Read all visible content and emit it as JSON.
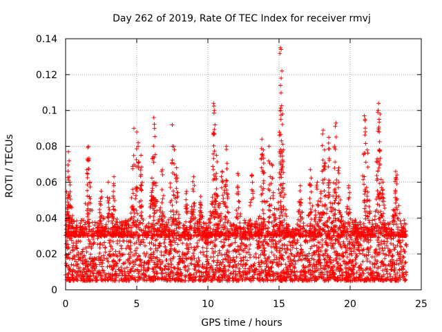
{
  "chart_data": {
    "type": "scatter",
    "title": "Day 262 of 2019, Rate Of TEC Index for receiver rmvj",
    "xlabel": "GPS time / hours",
    "ylabel": "ROTI / TECUs",
    "xlim": [
      0,
      25
    ],
    "ylim": [
      0,
      0.14
    ],
    "x_ticks": [
      0,
      5,
      10,
      15,
      20,
      25
    ],
    "x_tick_labels": [
      "0",
      "5",
      "10",
      "15",
      "20",
      "25"
    ],
    "y_ticks": [
      0,
      0.02,
      0.04,
      0.06,
      0.08,
      0.1,
      0.12,
      0.14
    ],
    "y_tick_labels": [
      "0",
      "0.02",
      "0.04",
      "0.06",
      "0.08",
      "0.1",
      "0.12",
      "0.14"
    ],
    "grid": true,
    "marker": "+",
    "series": [
      {
        "name": "ROTI",
        "color": "#ff0000",
        "x_range": [
          0,
          23.95
        ],
        "dense_band": [
          0.005,
          0.035
        ],
        "peaks": [
          {
            "x": 0.2,
            "y": 0.077
          },
          {
            "x": 0.25,
            "y": 0.072
          },
          {
            "x": 0.3,
            "y": 0.06
          },
          {
            "x": 0.2,
            "y": 0.047
          },
          {
            "x": 1.6,
            "y": 0.08
          },
          {
            "x": 1.55,
            "y": 0.073
          },
          {
            "x": 1.7,
            "y": 0.06
          },
          {
            "x": 2.5,
            "y": 0.055
          },
          {
            "x": 3.0,
            "y": 0.06
          },
          {
            "x": 3.4,
            "y": 0.063
          },
          {
            "x": 4.8,
            "y": 0.09
          },
          {
            "x": 5.0,
            "y": 0.088
          },
          {
            "x": 5.1,
            "y": 0.082
          },
          {
            "x": 5.3,
            "y": 0.075
          },
          {
            "x": 6.2,
            "y": 0.096
          },
          {
            "x": 6.25,
            "y": 0.09
          },
          {
            "x": 6.1,
            "y": 0.073
          },
          {
            "x": 6.8,
            "y": 0.067
          },
          {
            "x": 7.5,
            "y": 0.092
          },
          {
            "x": 7.6,
            "y": 0.08
          },
          {
            "x": 7.8,
            "y": 0.068
          },
          {
            "x": 8.5,
            "y": 0.055
          },
          {
            "x": 9.0,
            "y": 0.063
          },
          {
            "x": 9.5,
            "y": 0.052
          },
          {
            "x": 10.4,
            "y": 0.104
          },
          {
            "x": 10.45,
            "y": 0.1
          },
          {
            "x": 10.5,
            "y": 0.092
          },
          {
            "x": 10.6,
            "y": 0.075
          },
          {
            "x": 11.3,
            "y": 0.08
          },
          {
            "x": 11.0,
            "y": 0.066
          },
          {
            "x": 12.1,
            "y": 0.065
          },
          {
            "x": 13.1,
            "y": 0.064
          },
          {
            "x": 13.8,
            "y": 0.084
          },
          {
            "x": 13.9,
            "y": 0.078
          },
          {
            "x": 14.3,
            "y": 0.08
          },
          {
            "x": 14.5,
            "y": 0.07
          },
          {
            "x": 15.1,
            "y": 0.135
          },
          {
            "x": 15.15,
            "y": 0.134
          },
          {
            "x": 15.2,
            "y": 0.122
          },
          {
            "x": 15.15,
            "y": 0.118
          },
          {
            "x": 15.1,
            "y": 0.1
          },
          {
            "x": 15.25,
            "y": 0.098
          },
          {
            "x": 15.3,
            "y": 0.078
          },
          {
            "x": 16.5,
            "y": 0.058
          },
          {
            "x": 17.2,
            "y": 0.067
          },
          {
            "x": 17.7,
            "y": 0.06
          },
          {
            "x": 18.1,
            "y": 0.089
          },
          {
            "x": 18.2,
            "y": 0.078
          },
          {
            "x": 18.5,
            "y": 0.085
          },
          {
            "x": 18.9,
            "y": 0.08
          },
          {
            "x": 19.0,
            "y": 0.093
          },
          {
            "x": 19.2,
            "y": 0.068
          },
          {
            "x": 19.9,
            "y": 0.058
          },
          {
            "x": 21.0,
            "y": 0.097
          },
          {
            "x": 21.05,
            "y": 0.095
          },
          {
            "x": 21.2,
            "y": 0.078
          },
          {
            "x": 22.0,
            "y": 0.104
          },
          {
            "x": 22.1,
            "y": 0.098
          },
          {
            "x": 22.05,
            "y": 0.088
          },
          {
            "x": 21.9,
            "y": 0.073
          },
          {
            "x": 22.3,
            "y": 0.06
          },
          {
            "x": 23.2,
            "y": 0.066
          },
          {
            "x": 23.3,
            "y": 0.064
          }
        ]
      }
    ]
  }
}
